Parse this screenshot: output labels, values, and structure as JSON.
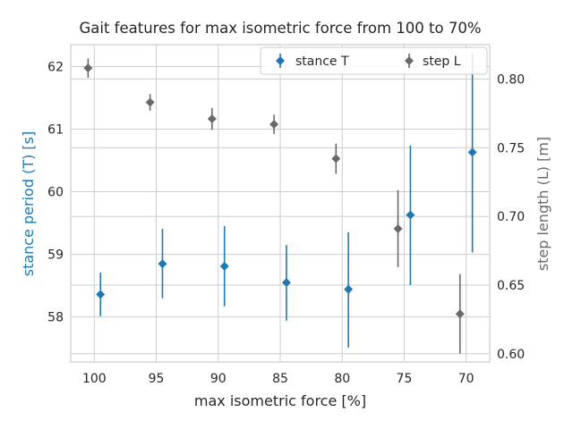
{
  "chart_data": {
    "type": "scatter",
    "title": "Gait features for max isometric force from 100 to 70%",
    "xlabel": "max isometric force [%]",
    "ylabel_left": "stance period (T) [s]",
    "ylabel_right": "step length (L) [m]",
    "x_ticks": [
      100,
      95,
      90,
      85,
      80,
      75,
      70
    ],
    "x_range": [
      101.9,
      68.1
    ],
    "y_left_range": [
      57.28,
      62.35
    ],
    "y_left_ticks": [
      58,
      59,
      60,
      61,
      62
    ],
    "y_right_range": [
      0.594,
      0.825
    ],
    "y_right_ticks": [
      0.6,
      0.65,
      0.7,
      0.75,
      0.8
    ],
    "grid": true,
    "legend_position": "top-right",
    "series": [
      {
        "name": "stance T",
        "axis": "left",
        "color": "#1f77b4",
        "marker": "diamond",
        "points": [
          {
            "x": 99.5,
            "y": 58.36,
            "err_low": 58.01,
            "err_high": 58.71
          },
          {
            "x": 94.5,
            "y": 58.85,
            "err_low": 58.3,
            "err_high": 59.41
          },
          {
            "x": 89.5,
            "y": 58.81,
            "err_low": 58.17,
            "err_high": 59.45
          },
          {
            "x": 84.5,
            "y": 58.55,
            "err_low": 57.94,
            "err_high": 59.15
          },
          {
            "x": 79.5,
            "y": 58.44,
            "err_low": 57.51,
            "err_high": 59.35
          },
          {
            "x": 74.5,
            "y": 59.63,
            "err_low": 58.51,
            "err_high": 60.74
          },
          {
            "x": 69.5,
            "y": 60.63,
            "err_low": 59.03,
            "err_high": 62.22
          }
        ]
      },
      {
        "name": "step L",
        "axis": "right",
        "color": "#696969",
        "marker": "diamond",
        "points": [
          {
            "x": 100.5,
            "y": 0.808,
            "err_low": 0.801,
            "err_high": 0.815
          },
          {
            "x": 95.5,
            "y": 0.783,
            "err_low": 0.777,
            "err_high": 0.789
          },
          {
            "x": 90.5,
            "y": 0.771,
            "err_low": 0.763,
            "err_high": 0.779
          },
          {
            "x": 85.5,
            "y": 0.767,
            "err_low": 0.76,
            "err_high": 0.774
          },
          {
            "x": 80.5,
            "y": 0.742,
            "err_low": 0.731,
            "err_high": 0.753
          },
          {
            "x": 75.5,
            "y": 0.691,
            "err_low": 0.663,
            "err_high": 0.719
          },
          {
            "x": 70.5,
            "y": 0.629,
            "err_low": 0.6,
            "err_high": 0.658
          }
        ]
      }
    ]
  }
}
